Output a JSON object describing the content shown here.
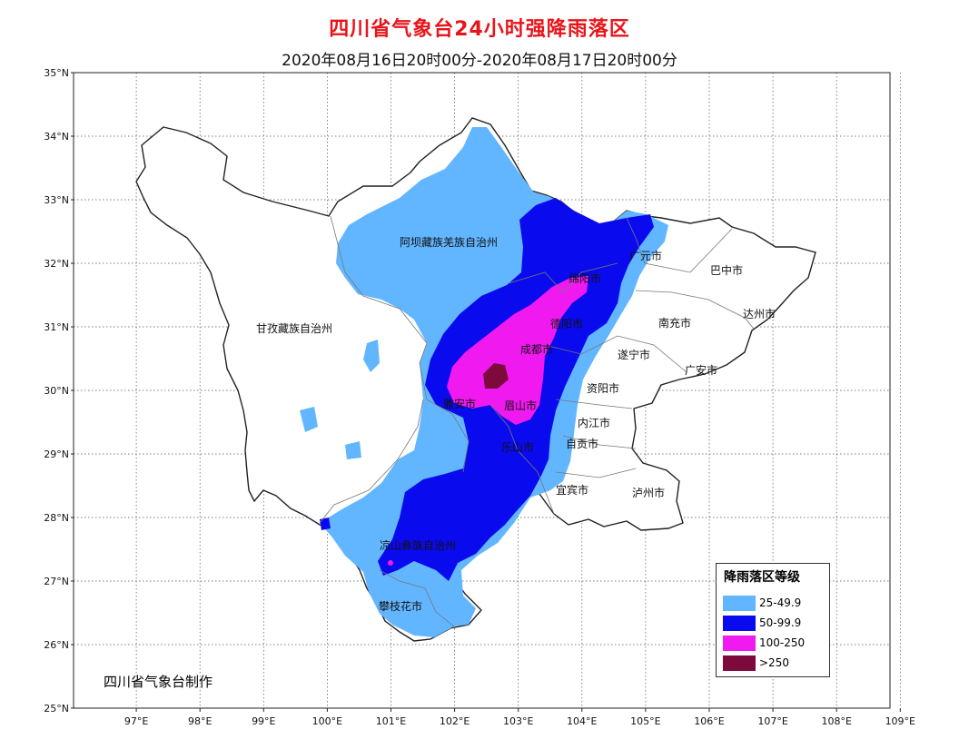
{
  "title": "四川省气象台24小时强降雨落区",
  "title_color": "#e8141b",
  "subtitle": "2020年08月16日20时00分-2020年08月17日20时00分",
  "lat_labels": [
    "35°N",
    "34°N",
    "33°N",
    "32°N",
    "31°N",
    "30°N",
    "29°N",
    "28°N",
    "27°N",
    "26°N",
    "25°N"
  ],
  "lon_labels": [
    "97°E",
    "98°E",
    "99°E",
    "100°E",
    "101°E",
    "102°E",
    "103°E",
    "104°E",
    "105°E",
    "106°E",
    "107°E",
    "108°E",
    "109°E"
  ],
  "regions": [
    "阿坝藏族羌族自治州",
    "甘孜藏族自治州",
    "凉山彝族自治州",
    "攀枝花市",
    "雅安市",
    "眉山市",
    "乐山市",
    "成都市",
    "德阳市",
    "绵阳市",
    "广元市",
    "巴中市",
    "达州市",
    "南充市",
    "遂宁市",
    "广安市",
    "资阳市",
    "内江市",
    "自贡市",
    "宜宾市",
    "泸州市"
  ],
  "legend": {
    "title": "降雨落区等级",
    "items": [
      {
        "label": "25-49.9",
        "color": "#62b6ff"
      },
      {
        "label": "50-99.9",
        "color": "#0a0aee"
      },
      {
        "label": "100-250",
        "color": "#f01af0"
      },
      {
        "label": ">250",
        "color": "#7d0a3c"
      }
    ]
  },
  "credit": "四川省气象台制作"
}
